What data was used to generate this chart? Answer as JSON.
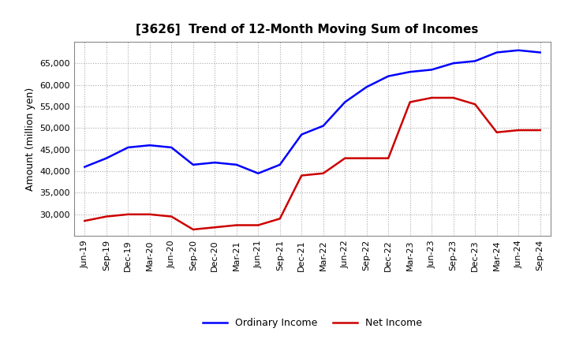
{
  "title": "[3626]  Trend of 12-Month Moving Sum of Incomes",
  "ylabel": "Amount (million yen)",
  "background_color": "#ffffff",
  "grid_color": "#aaaaaa",
  "plot_bg_color": "#ffffff",
  "ordinary_income_color": "#0000ff",
  "net_income_color": "#cc0000",
  "legend_labels": [
    "Ordinary Income",
    "Net Income"
  ],
  "x_labels": [
    "Jun-19",
    "Sep-19",
    "Dec-19",
    "Mar-20",
    "Jun-20",
    "Sep-20",
    "Dec-20",
    "Mar-21",
    "Jun-21",
    "Sep-21",
    "Dec-21",
    "Mar-22",
    "Jun-22",
    "Sep-22",
    "Dec-22",
    "Mar-23",
    "Jun-23",
    "Sep-23",
    "Dec-23",
    "Mar-24",
    "Jun-24",
    "Sep-24"
  ],
  "ordinary_income": [
    41000,
    43000,
    45500,
    46000,
    45500,
    41500,
    42000,
    41500,
    39500,
    41500,
    48500,
    50500,
    56000,
    59500,
    62000,
    63000,
    63500,
    65000,
    65500,
    67500,
    68000,
    67500
  ],
  "net_income": [
    28500,
    29500,
    30000,
    30000,
    29500,
    26500,
    27000,
    27500,
    27500,
    29000,
    39000,
    39500,
    43000,
    43000,
    43000,
    56000,
    57000,
    57000,
    55500,
    49000,
    49500,
    49500
  ],
  "ylim": [
    25000,
    70000
  ],
  "yticks": [
    30000,
    35000,
    40000,
    45000,
    50000,
    55000,
    60000,
    65000
  ],
  "title_fontsize": 11,
  "axis_fontsize": 9,
  "tick_fontsize": 8,
  "legend_fontsize": 9,
  "line_width": 1.8
}
